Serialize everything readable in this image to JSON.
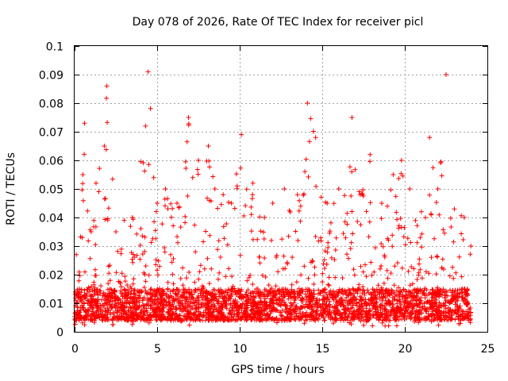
{
  "chart_data": {
    "type": "scatter",
    "title": "Day 078 of 2026, Rate Of TEC Index for receiver picl",
    "xlabel": "GPS time / hours",
    "ylabel": "ROTI / TECUs",
    "xlim": [
      0,
      25
    ],
    "ylim": [
      0,
      0.1
    ],
    "xticks": [
      0,
      5,
      10,
      15,
      20,
      25
    ],
    "yticks": [
      0,
      0.01,
      0.02,
      0.03,
      0.04,
      0.05,
      0.06,
      0.07,
      0.08,
      0.09,
      0.1
    ],
    "xtick_labels": [
      "0",
      "5",
      "10",
      "15",
      "20",
      "25"
    ],
    "ytick_labels": [
      "0",
      "0.01",
      "0.02",
      "0.03",
      "0.04",
      "0.05",
      "0.06",
      "0.07",
      "0.08",
      "0.09",
      "0.1"
    ],
    "grid": true,
    "marker": "plus",
    "color": "#ff0000",
    "time_range_hours": [
      0,
      24
    ],
    "baseline_band": [
      0.004,
      0.015
    ],
    "activity_profile": [
      {
        "x": 0.1,
        "y": 0.027
      },
      {
        "x": 0.5,
        "y": 0.055
      },
      {
        "x": 0.6,
        "y": 0.073
      },
      {
        "x": 1.0,
        "y": 0.035
      },
      {
        "x": 1.3,
        "y": 0.052
      },
      {
        "x": 1.8,
        "y": 0.065
      },
      {
        "x": 1.95,
        "y": 0.086
      },
      {
        "x": 2.5,
        "y": 0.035
      },
      {
        "x": 3.0,
        "y": 0.039
      },
      {
        "x": 3.5,
        "y": 0.04
      },
      {
        "x": 4.3,
        "y": 0.072
      },
      {
        "x": 4.45,
        "y": 0.091
      },
      {
        "x": 5.0,
        "y": 0.045
      },
      {
        "x": 5.5,
        "y": 0.05
      },
      {
        "x": 6.2,
        "y": 0.045
      },
      {
        "x": 6.9,
        "y": 0.075
      },
      {
        "x": 7.5,
        "y": 0.06
      },
      {
        "x": 8.1,
        "y": 0.065
      },
      {
        "x": 8.5,
        "y": 0.05
      },
      {
        "x": 9.0,
        "y": 0.048
      },
      {
        "x": 9.5,
        "y": 0.045
      },
      {
        "x": 10.1,
        "y": 0.069
      },
      {
        "x": 10.8,
        "y": 0.052
      },
      {
        "x": 11.5,
        "y": 0.04
      },
      {
        "x": 12.0,
        "y": 0.045
      },
      {
        "x": 12.7,
        "y": 0.05
      },
      {
        "x": 13.5,
        "y": 0.048
      },
      {
        "x": 14.1,
        "y": 0.08
      },
      {
        "x": 14.6,
        "y": 0.068
      },
      {
        "x": 15.3,
        "y": 0.045
      },
      {
        "x": 16.0,
        "y": 0.05
      },
      {
        "x": 16.8,
        "y": 0.075
      },
      {
        "x": 17.3,
        "y": 0.048
      },
      {
        "x": 17.9,
        "y": 0.062
      },
      {
        "x": 18.6,
        "y": 0.045
      },
      {
        "x": 19.3,
        "y": 0.055
      },
      {
        "x": 19.8,
        "y": 0.06
      },
      {
        "x": 20.3,
        "y": 0.05
      },
      {
        "x": 21.0,
        "y": 0.042
      },
      {
        "x": 21.5,
        "y": 0.068
      },
      {
        "x": 22.0,
        "y": 0.05
      },
      {
        "x": 22.5,
        "y": 0.09
      },
      {
        "x": 23.0,
        "y": 0.043
      },
      {
        "x": 23.6,
        "y": 0.04
      },
      {
        "x": 24.0,
        "y": 0.03
      }
    ]
  }
}
